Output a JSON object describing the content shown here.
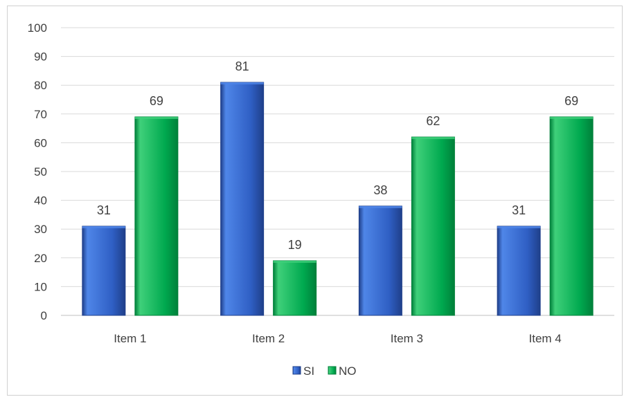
{
  "chart_data": {
    "type": "bar",
    "title": "",
    "xlabel": "",
    "ylabel": "",
    "categories": [
      "Item 1",
      "Item 2",
      "Item 3",
      "Item 4"
    ],
    "series": [
      {
        "name": "SI",
        "values": [
          31,
          81,
          38,
          31
        ],
        "color": "#2f5fc4",
        "color_light": "#4f86e8",
        "color_dark": "#1f3f8a"
      },
      {
        "name": "NO",
        "values": [
          69,
          19,
          62,
          69
        ],
        "color": "#00a94f",
        "color_light": "#3fd07a",
        "color_dark": "#00803a"
      }
    ],
    "ylim": [
      0,
      100
    ],
    "yticks": [
      0,
      10,
      20,
      30,
      40,
      50,
      60,
      70,
      80,
      90,
      100
    ],
    "grid": true,
    "legend_position": "bottom",
    "data_labels": true
  }
}
